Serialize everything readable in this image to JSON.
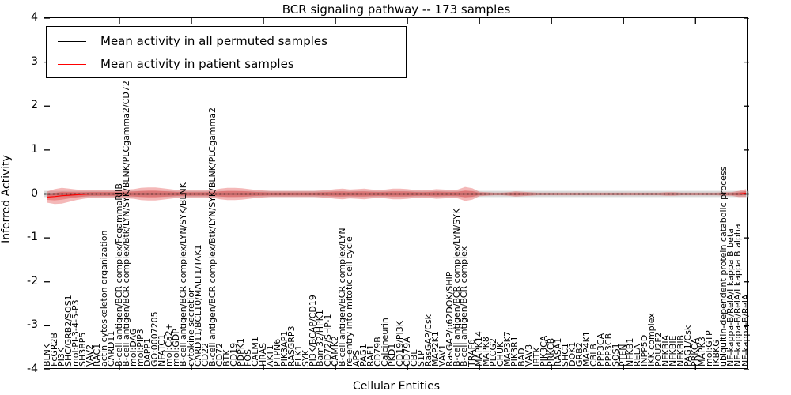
{
  "title": "BCR signaling pathway -- 173 samples",
  "axes": {
    "ylabel": "Inferred Activity",
    "xlabel": "Cellular Entities",
    "yticks": [
      "4",
      "3",
      "2",
      "1",
      "0",
      "-1",
      "-2",
      "-3",
      "-4"
    ],
    "ylim": [
      -4,
      4
    ]
  },
  "legend": [
    {
      "label": "Mean activity in all permuted samples",
      "color": "#000000"
    },
    {
      "label": "Mean activity in patient samples",
      "color": "#ff0000"
    }
  ],
  "chart_data": {
    "type": "line",
    "title": "BCR signaling pathway -- 173 samples",
    "xlabel": "Cellular Entities",
    "ylabel": "Inferred Activity",
    "ylim": [
      -4,
      4
    ],
    "grid": false,
    "legend_position": "upper left",
    "colors": {
      "permuted_line": "#000000",
      "patient_line": "#ff0000",
      "patient_band": "#e03535",
      "permuted_band": "#bcbcbc"
    },
    "categories": [
      "BLNK",
      "FcGR2B",
      "PI3K",
      "SHC/GRB2/SOS1",
      "mol:PI-3-4-5-P3",
      "SH3BP5",
      "VAV2",
      "RAC1",
      "actin cytoskeleton organization",
      "CARD11",
      "B-cell antigen/BCR complex/FcgammaRIIB",
      "B-cell antigen/BCR complex/Btk/LYN/SYK/BLNK/PLCgamma2/CD72",
      "mol:DAG",
      "mol:PIP3",
      "DAPP1",
      "GO:0007205",
      "NFATC1",
      "mol:Ca2+",
      "mol:GDP",
      "B-cell antigen/BCR complex/LYN/SYK/BLNK",
      "cytokine secretion",
      "CARD11/BCL10/MALT1/TAK1",
      "CD22",
      "B-cell antigen/BCR complex/Btk/LYN/SYK/BLNK/PLCgamma2",
      "CD72",
      "BTK",
      "CD19",
      "PDPK1",
      "FOS",
      "CALM1",
      "HRAS",
      "AKT1",
      "PTPN6",
      "PIK3AP1",
      "RASGRP3",
      "ELK1",
      "SYK",
      "PI3K/BCAP/CD19",
      "Bam32/HPK1",
      "CD72/SHP-1",
      "CAMK2",
      "B-cell antigen/BCR complex/LYN",
      "re-entry into mitotic cell cycle",
      "APS",
      "PAG1",
      "RAF1",
      "CD79B",
      "Calcineurin",
      "PKD1",
      "CD19/PI3K",
      "CD79A",
      "CBL",
      "S1P",
      "RasGAP/Csk",
      "MAP2K1",
      "VAV1",
      "RasGAP/p62DOK/SHIP",
      "B-cell antigen/BCR complex/LYN/SYK",
      "B-cell antigen/BCR complex",
      "TRAF6",
      "MAPK14",
      "MAPK8",
      "PLCG2",
      "CHUK",
      "MAP3K7",
      "PIK3R1",
      "BAD",
      "VAV3",
      "IBTK",
      "PIK3CA",
      "PRKCB",
      "RASA1",
      "SHC1",
      "DOK1",
      "GRB2",
      "MAP4K1",
      "CBLB",
      "PPP3CA",
      "PPP3CB",
      "SOS1",
      "PTEN",
      "NFKB1",
      "RELA",
      "INPP5D",
      "IKK complex",
      "POU2F2",
      "NFKBIA",
      "NFKBIE",
      "NFKBIB",
      "PAG1/Csk",
      "PRKCA",
      "MAPK3",
      "mol:GTP",
      "IKBKG",
      "ubiquitin-dependent protein catabolic process",
      "NF-kappa-B/RelA/I kappa B beta",
      "NF-kappa-B/RelA/I kappa B alpha",
      "NF-kappa-B/RelA"
    ],
    "series": [
      {
        "name": "Mean activity in all permuted samples",
        "mean": 0,
        "band_halfwidth": 0.07
      },
      {
        "name": "Mean activity in patient samples",
        "mean_values": [
          -0.07,
          -0.06,
          -0.04,
          -0.03,
          -0.02,
          -0.01,
          0,
          0,
          0,
          0,
          0,
          0,
          0,
          0,
          0,
          0,
          0,
          0,
          0,
          0,
          0,
          0,
          0,
          0,
          0,
          0,
          0,
          0,
          0,
          0,
          0,
          0,
          0,
          0,
          0,
          0,
          0,
          0,
          0,
          0,
          0,
          0,
          0,
          0,
          0,
          0,
          0,
          0,
          0,
          0,
          0,
          0,
          0,
          0,
          0,
          0,
          0,
          0,
          0,
          0,
          0,
          0,
          0,
          0,
          0,
          0,
          0,
          0,
          0,
          0,
          0,
          0,
          0,
          0,
          0,
          0,
          0,
          0,
          0,
          0,
          0,
          0,
          0,
          0,
          0,
          0,
          0,
          0,
          0,
          0,
          0,
          0,
          0,
          0,
          0,
          0,
          0,
          0.02
        ],
        "band_halfwidths": [
          0.13,
          0.17,
          0.18,
          0.15,
          0.12,
          0.1,
          0.09,
          0.09,
          0.09,
          0.09,
          0.1,
          0.1,
          0.11,
          0.14,
          0.15,
          0.15,
          0.13,
          0.11,
          0.09,
          0.08,
          0.08,
          0.08,
          0.08,
          0.09,
          0.12,
          0.14,
          0.14,
          0.13,
          0.11,
          0.09,
          0.08,
          0.07,
          0.07,
          0.07,
          0.07,
          0.07,
          0.07,
          0.07,
          0.08,
          0.09,
          0.11,
          0.12,
          0.1,
          0.11,
          0.12,
          0.1,
          0.09,
          0.1,
          0.12,
          0.12,
          0.11,
          0.09,
          0.08,
          0.09,
          0.11,
          0.1,
          0.09,
          0.1,
          0.16,
          0.13,
          0.05,
          0.04,
          0.03,
          0.03,
          0.04,
          0.06,
          0.05,
          0.04,
          0.03,
          0.03,
          0.03,
          0.03,
          0.03,
          0.03,
          0.03,
          0.03,
          0.03,
          0.03,
          0.03,
          0.03,
          0.03,
          0.03,
          0.03,
          0.03,
          0.03,
          0.03,
          0.04,
          0.04,
          0.03,
          0.03,
          0.03,
          0.03,
          0.03,
          0.03,
          0.04,
          0.04,
          0.07,
          0.09
        ]
      }
    ],
    "xtick_major_every": 10
  }
}
